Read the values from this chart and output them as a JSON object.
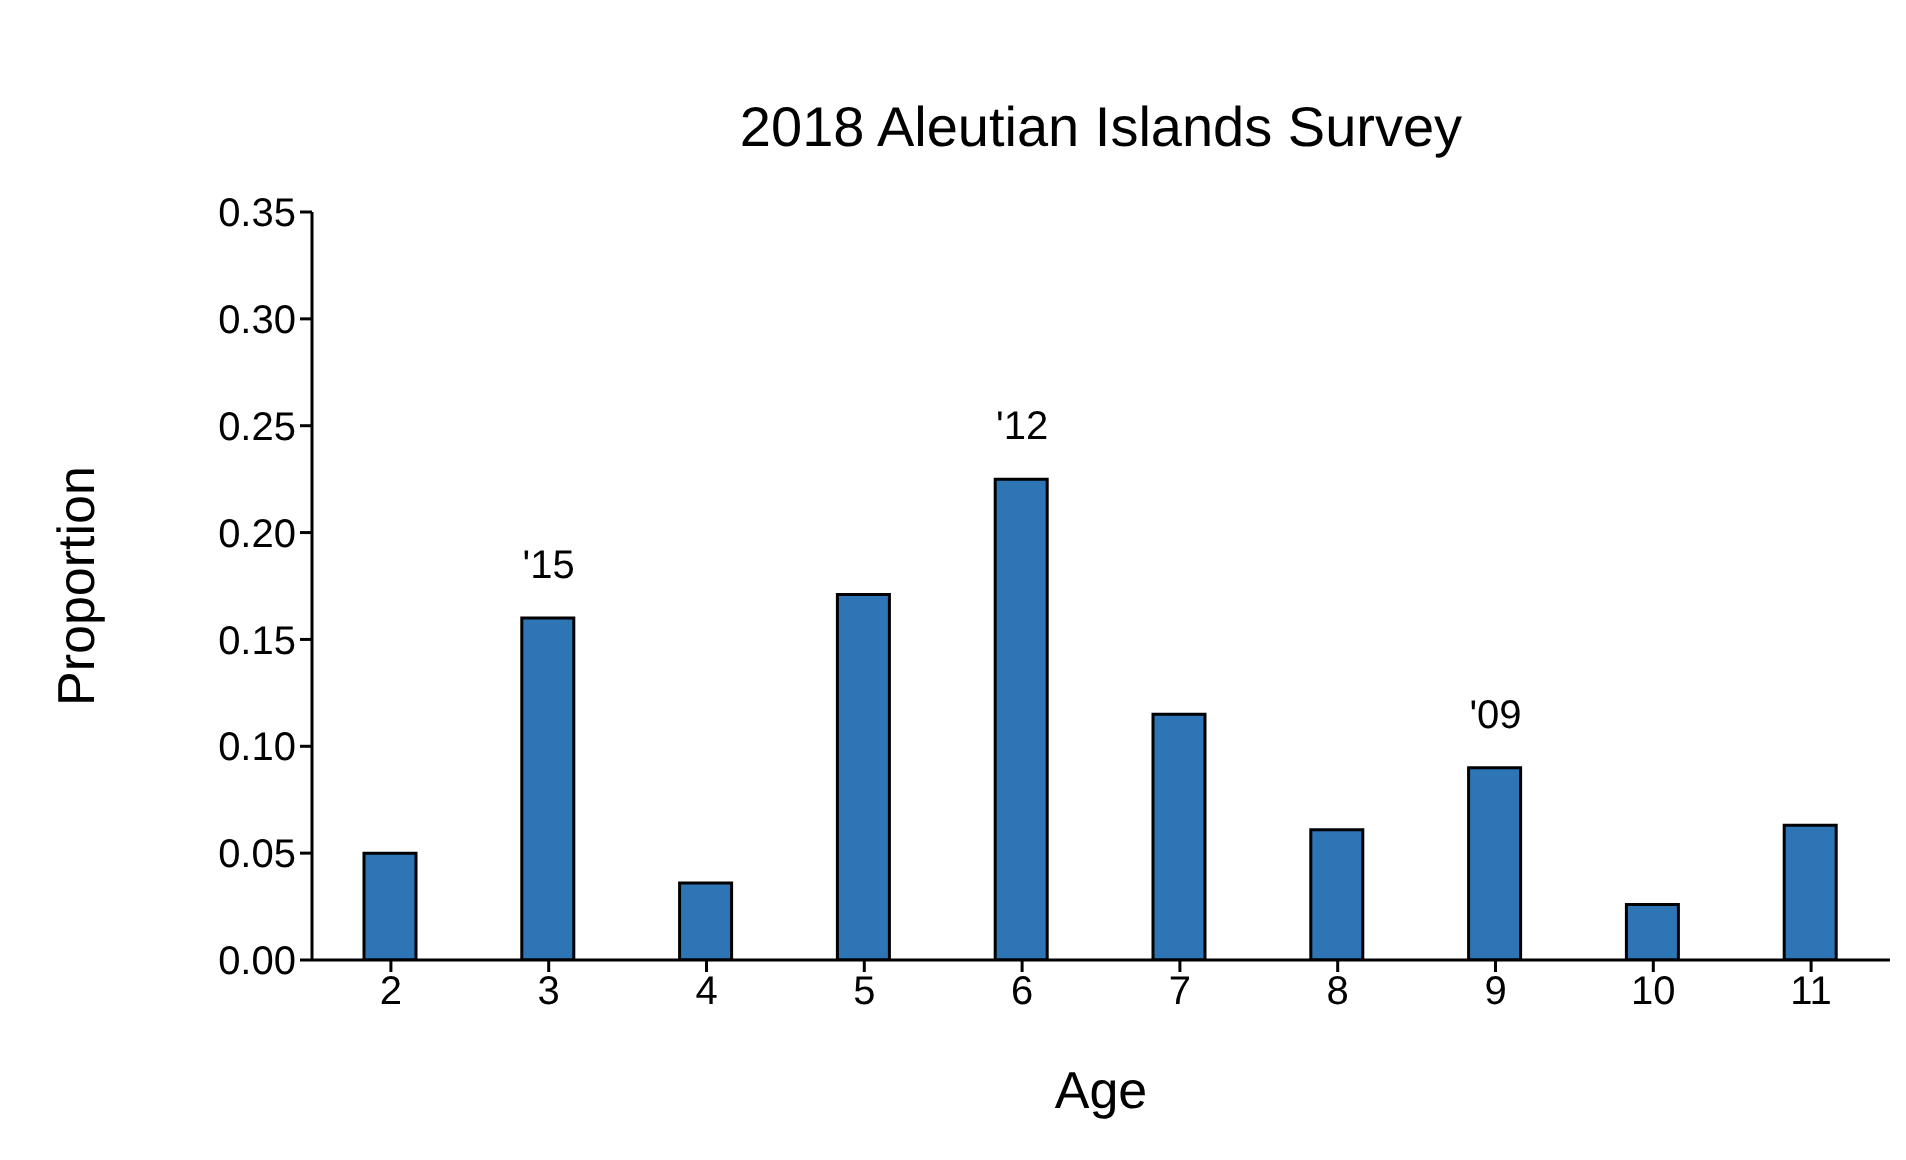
{
  "chart_data": {
    "type": "bar",
    "title": "2018 Aleutian Islands Survey",
    "xlabel": "Age",
    "ylabel": "Proportion",
    "categories": [
      "2",
      "3",
      "4",
      "5",
      "6",
      "7",
      "8",
      "9",
      "10",
      "11"
    ],
    "values": [
      0.05,
      0.16,
      0.036,
      0.171,
      0.225,
      0.115,
      0.061,
      0.09,
      0.026,
      0.063
    ],
    "color": "#2e75b6",
    "ylim": [
      0,
      0.35
    ],
    "yticks": [
      {
        "value": 0,
        "label": "0.00"
      },
      {
        "value": 0.05,
        "label": "0.05"
      },
      {
        "value": 0.1,
        "label": "0.10"
      },
      {
        "value": 0.15,
        "label": "0.15"
      },
      {
        "value": 0.2,
        "label": "0.20"
      },
      {
        "value": 0.25,
        "label": "0.25"
      },
      {
        "value": 0.3,
        "label": "0.30"
      },
      {
        "value": 0.35,
        "label": "0.35"
      }
    ],
    "annotations": [
      {
        "text": "'15",
        "x": "3",
        "y": 0.16
      },
      {
        "text": "'12",
        "x": "6",
        "y": 0.225
      },
      {
        "text": "'09",
        "x": "9",
        "y": 0.09
      }
    ],
    "grid": false,
    "legend": false
  }
}
